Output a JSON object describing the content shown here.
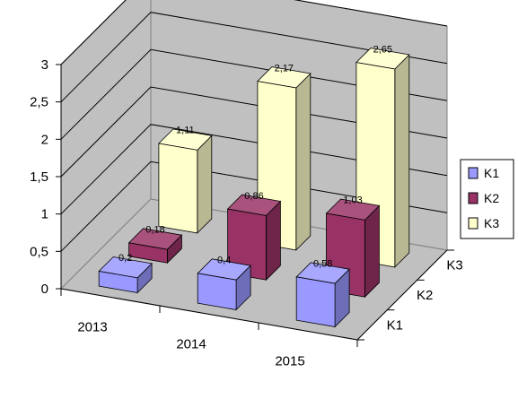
{
  "chart_data": {
    "type": "bar",
    "title": "",
    "xlabel": "",
    "ylabel": "",
    "ylim": [
      0,
      3
    ],
    "y_ticks": [
      "0",
      "0,5",
      "1",
      "1,5",
      "2",
      "2,5",
      "3"
    ],
    "categories": [
      "2013",
      "2014",
      "2015"
    ],
    "depth_axis_labels": [
      "K1",
      "K2",
      "K3"
    ],
    "series": [
      {
        "name": "K1",
        "values": [
          0.2,
          0.4,
          0.58
        ],
        "labels": [
          "0,2",
          "0,4",
          "0,58"
        ],
        "color": "#9999ff"
      },
      {
        "name": "K2",
        "values": [
          0.18,
          0.86,
          1.03
        ],
        "labels": [
          "0,18",
          "0,86",
          "1,03"
        ],
        "color": "#993366"
      },
      {
        "name": "K3",
        "values": [
          1.11,
          2.17,
          2.65
        ],
        "labels": [
          "1,11",
          "2,17",
          "2,65"
        ],
        "color": "#ffffcc"
      }
    ],
    "grid": true,
    "legend_position": "right",
    "wall_color": "#c0c0c0",
    "floor_color": "#c0c0c0"
  }
}
